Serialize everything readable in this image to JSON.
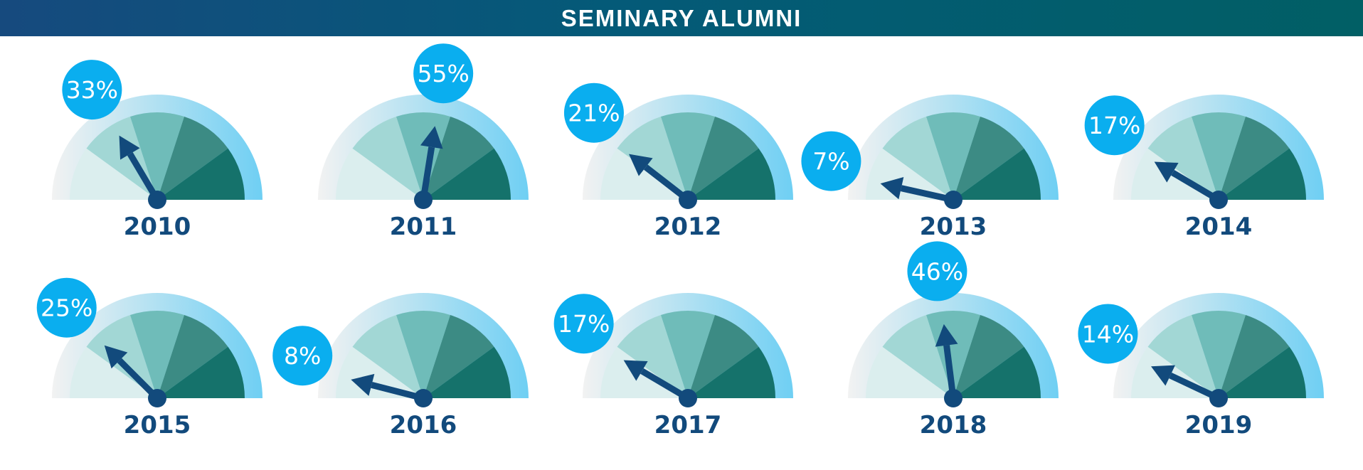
{
  "chart_data": {
    "type": "gauge",
    "title": "SEMINARY ALUMNI",
    "range": [
      0,
      100
    ],
    "unit": "%",
    "gauges": [
      {
        "year": "2010",
        "value": 33,
        "label": "33%"
      },
      {
        "year": "2011",
        "value": 55,
        "label": "55%"
      },
      {
        "year": "2012",
        "value": 21,
        "label": "21%"
      },
      {
        "year": "2013",
        "value": 7,
        "label": "7%"
      },
      {
        "year": "2014",
        "value": 17,
        "label": "17%"
      },
      {
        "year": "2015",
        "value": 25,
        "label": "25%"
      },
      {
        "year": "2016",
        "value": 8,
        "label": "8%"
      },
      {
        "year": "2017",
        "value": 17,
        "label": "17%"
      },
      {
        "year": "2018",
        "value": 46,
        "label": "46%"
      },
      {
        "year": "2019",
        "value": 14,
        "label": "14%"
      }
    ],
    "colors": {
      "sectors": [
        "#dbeeee",
        "#a2d7d5",
        "#6fbcb9",
        "#3c8b84",
        "#15726b"
      ],
      "ring_start": "#f2f2f2",
      "ring_end": "#6fcff3",
      "needle": "#124a7c",
      "bubble": "#0aaeef",
      "year_text": "#124a7c"
    }
  }
}
